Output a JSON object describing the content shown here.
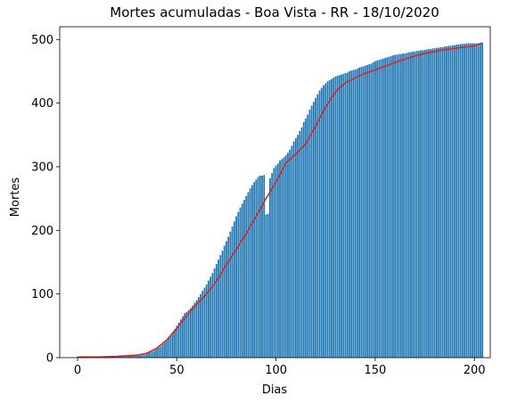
{
  "chart_data": {
    "type": "bar",
    "title": "Mortes acumuladas - Boa Vista - RR - 18/10/2020",
    "xlabel": "Dias",
    "ylabel": "Mortes",
    "xlim": [
      -9,
      208
    ],
    "ylim": [
      0,
      520
    ],
    "xticks": [
      0,
      50,
      100,
      150,
      200
    ],
    "yticks": [
      0,
      100,
      200,
      300,
      400,
      500
    ],
    "grid": false,
    "bar_color": "#1f77b4",
    "line_color": "#d62728",
    "series": [
      {
        "type": "bar",
        "x": [
          0,
          1,
          2,
          3,
          4,
          5,
          6,
          7,
          8,
          9,
          10,
          11,
          12,
          13,
          14,
          15,
          16,
          17,
          18,
          19,
          20,
          21,
          22,
          23,
          24,
          25,
          26,
          27,
          28,
          29,
          30,
          31,
          32,
          33,
          34,
          35,
          36,
          37,
          38,
          39,
          40,
          41,
          42,
          43,
          44,
          45,
          46,
          47,
          48,
          49,
          50,
          51,
          52,
          53,
          54,
          55,
          56,
          57,
          58,
          59,
          60,
          61,
          62,
          63,
          64,
          65,
          66,
          67,
          68,
          69,
          70,
          71,
          72,
          73,
          74,
          75,
          76,
          77,
          78,
          79,
          80,
          81,
          82,
          83,
          84,
          85,
          86,
          87,
          88,
          89,
          90,
          91,
          92,
          93,
          94,
          95,
          96,
          97,
          98,
          99,
          100,
          101,
          102,
          103,
          104,
          105,
          106,
          107,
          108,
          109,
          110,
          111,
          112,
          113,
          114,
          115,
          116,
          117,
          118,
          119,
          120,
          121,
          122,
          123,
          124,
          125,
          126,
          127,
          128,
          129,
          130,
          131,
          132,
          133,
          134,
          135,
          136,
          137,
          138,
          139,
          140,
          141,
          142,
          143,
          144,
          145,
          146,
          147,
          148,
          149,
          150,
          151,
          152,
          153,
          154,
          155,
          156,
          157,
          158,
          159,
          160,
          161,
          162,
          163,
          164,
          165,
          166,
          167,
          168,
          169,
          170,
          171,
          172,
          173,
          174,
          175,
          176,
          177,
          178,
          179,
          180,
          181,
          182,
          183,
          184,
          185,
          186,
          187,
          188,
          189,
          190,
          191,
          192,
          193,
          194,
          195,
          196,
          197,
          198,
          199,
          200,
          201,
          202,
          203,
          204
        ],
        "values": [
          1,
          1,
          1,
          1,
          1,
          1,
          1,
          1,
          1,
          1,
          1,
          1,
          1,
          1,
          1,
          1,
          2,
          2,
          2,
          2,
          2,
          2,
          2,
          2,
          2,
          3,
          3,
          3,
          3,
          3,
          4,
          4,
          4,
          5,
          5,
          7,
          8,
          9,
          10,
          12,
          14,
          16,
          18,
          21,
          24,
          27,
          31,
          35,
          40,
          45,
          50,
          55,
          60,
          65,
          70,
          72,
          75,
          78,
          82,
          86,
          90,
          95,
          100,
          105,
          110,
          115,
          121,
          127,
          133,
          140,
          147,
          154,
          161,
          168,
          176,
          183,
          190,
          198,
          206,
          214,
          222,
          229,
          236,
          242,
          248,
          254,
          260,
          266,
          271,
          276,
          280,
          284,
          286,
          286,
          287,
          225,
          226,
          282,
          290,
          298,
          302,
          305,
          310,
          312,
          315,
          318,
          322,
          327,
          333,
          340,
          345,
          350,
          356,
          362,
          370,
          376,
          382,
          390,
          396,
          402,
          408,
          414,
          420,
          424,
          428,
          431,
          434,
          436,
          438,
          440,
          442,
          443,
          444,
          445,
          446,
          447,
          448,
          450,
          451,
          452,
          453,
          454,
          456,
          457,
          458,
          459,
          460,
          461,
          462,
          464,
          466,
          467,
          468,
          469,
          470,
          471,
          472,
          473,
          474,
          475,
          476,
          476,
          477,
          477,
          478,
          478,
          479,
          480,
          480,
          481,
          481,
          482,
          482,
          483,
          483,
          484,
          484,
          485,
          485,
          486,
          486,
          487,
          487,
          488,
          488,
          489,
          489,
          490,
          490,
          491,
          491,
          492,
          492,
          493,
          493,
          493,
          494,
          494,
          494,
          494,
          494,
          494,
          494,
          495,
          495
        ],
        "comment_removed": true
      },
      {
        "type": "line",
        "x": [
          0,
          10,
          20,
          30,
          35,
          40,
          45,
          50,
          55,
          60,
          65,
          70,
          75,
          80,
          85,
          90,
          95,
          100,
          105,
          110,
          115,
          120,
          125,
          130,
          135,
          140,
          145,
          150,
          155,
          160,
          165,
          170,
          175,
          180,
          185,
          190,
          195,
          200,
          204
        ],
        "values": [
          1,
          1,
          2,
          4,
          7,
          15,
          28,
          46,
          66,
          84,
          100,
          120,
          146,
          170,
          195,
          222,
          250,
          276,
          306,
          320,
          336,
          364,
          394,
          418,
          432,
          440,
          447,
          452,
          458,
          464,
          469,
          474,
          478,
          481,
          484,
          486,
          488,
          490,
          494
        ]
      }
    ]
  }
}
